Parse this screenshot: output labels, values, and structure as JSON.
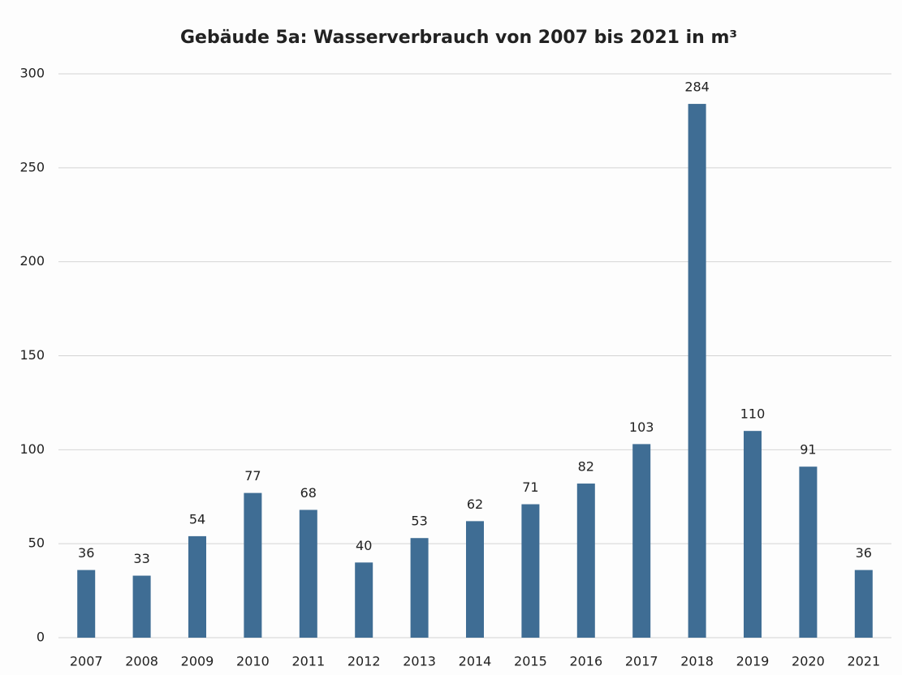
{
  "chart_data": {
    "type": "bar",
    "title": "Gebäude 5a: Wasserverbrauch von 2007 bis 2021 in m³",
    "categories": [
      "2007",
      "2008",
      "2009",
      "2010",
      "2011",
      "2012",
      "2013",
      "2014",
      "2015",
      "2016",
      "2017",
      "2018",
      "2019",
      "2020",
      "2021"
    ],
    "values": [
      36,
      33,
      54,
      77,
      68,
      40,
      53,
      62,
      71,
      82,
      103,
      284,
      110,
      91,
      36
    ],
    "color": "#3f6d94",
    "ylim": [
      0,
      300
    ],
    "yticks": [
      0,
      50,
      100,
      150,
      200,
      250,
      300
    ],
    "grid": true
  }
}
